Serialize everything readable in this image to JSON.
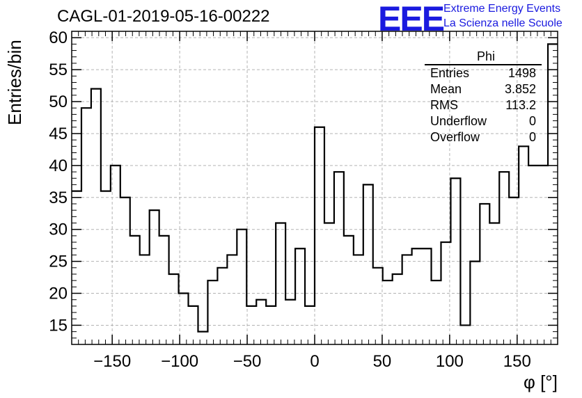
{
  "chart_data": {
    "type": "histogram",
    "title": "CAGL-01-2019-05-16-00222",
    "xlabel": "φ [°]",
    "ylabel": "Entries/bin",
    "xlim": [
      -180,
      180
    ],
    "ylim": [
      12,
      61
    ],
    "bin_width": 7.2,
    "x_start": -180,
    "xticks": [
      -150,
      -100,
      -50,
      0,
      50,
      100,
      150
    ],
    "yticks": [
      15,
      20,
      25,
      30,
      35,
      40,
      45,
      50,
      55,
      60
    ],
    "grid": true,
    "line_color": "#000000",
    "values": [
      36,
      49,
      52,
      36,
      40,
      35,
      29,
      26,
      33,
      29,
      23,
      20,
      18,
      14,
      22,
      24,
      26,
      30,
      18,
      19,
      18,
      31,
      19,
      27,
      18,
      46,
      31,
      39,
      29,
      26,
      37,
      24,
      22,
      23,
      26,
      27,
      27,
      22,
      28,
      38,
      15,
      25,
      34,
      31,
      39,
      35,
      43,
      40,
      40,
      59
    ],
    "stats": {
      "name": "Phi",
      "entries_label": "Entries",
      "entries": "1498",
      "mean_label": "Mean",
      "mean": "3.852",
      "rms_label": "RMS",
      "rms": "113.2",
      "underflow_label": "Underflow",
      "underflow": "0",
      "overflow_label": "Overflow",
      "overflow": "0"
    }
  },
  "logo": {
    "text": "EEE",
    "line1": "Extreme Energy Events",
    "line2": "La Scienza nelle Scuole",
    "color": "#1a1adf"
  }
}
